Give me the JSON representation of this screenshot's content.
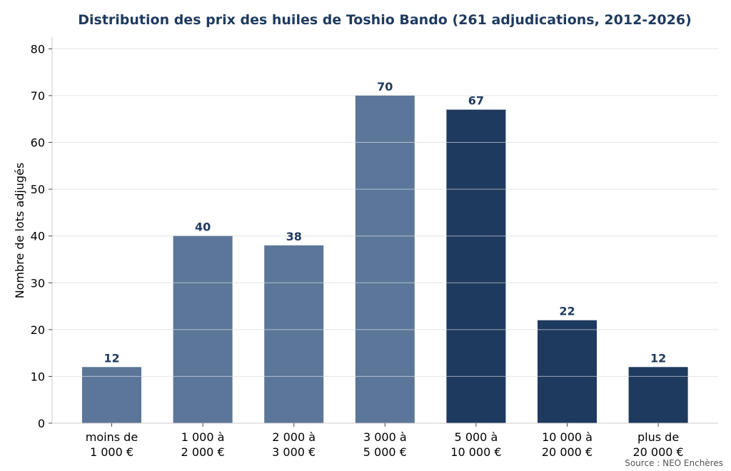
{
  "chart_data": {
    "type": "bar",
    "title": "Distribution des prix des huiles de Toshio Bando (261 adjudications, 2012-2026)",
    "xlabel": "",
    "ylabel": "Nombre de lots adjugés",
    "ylim": [
      0,
      82.5
    ],
    "yticks": [
      0,
      10,
      20,
      30,
      40,
      50,
      60,
      70,
      80
    ],
    "grid": true,
    "categories": [
      [
        "moins de",
        "1 000 €"
      ],
      [
        "1 000 à",
        "2 000 €"
      ],
      [
        "2 000 à",
        "3 000 €"
      ],
      [
        "3 000 à",
        "5 000 €"
      ],
      [
        "5 000 à",
        "10 000 €"
      ],
      [
        "10 000 à",
        "20 000 €"
      ],
      [
        "plus de",
        "20 000 €"
      ]
    ],
    "values": [
      12,
      40,
      38,
      70,
      67,
      22,
      12
    ],
    "bar_colors": [
      "#5b7698",
      "#5b7698",
      "#5b7698",
      "#5b7698",
      "#1f3a5f",
      "#1f3a5f",
      "#1f3a5f"
    ],
    "label_color": "#1f3a5f",
    "title_color": "#1f3a5f",
    "source": "Source : NEO Enchères"
  }
}
